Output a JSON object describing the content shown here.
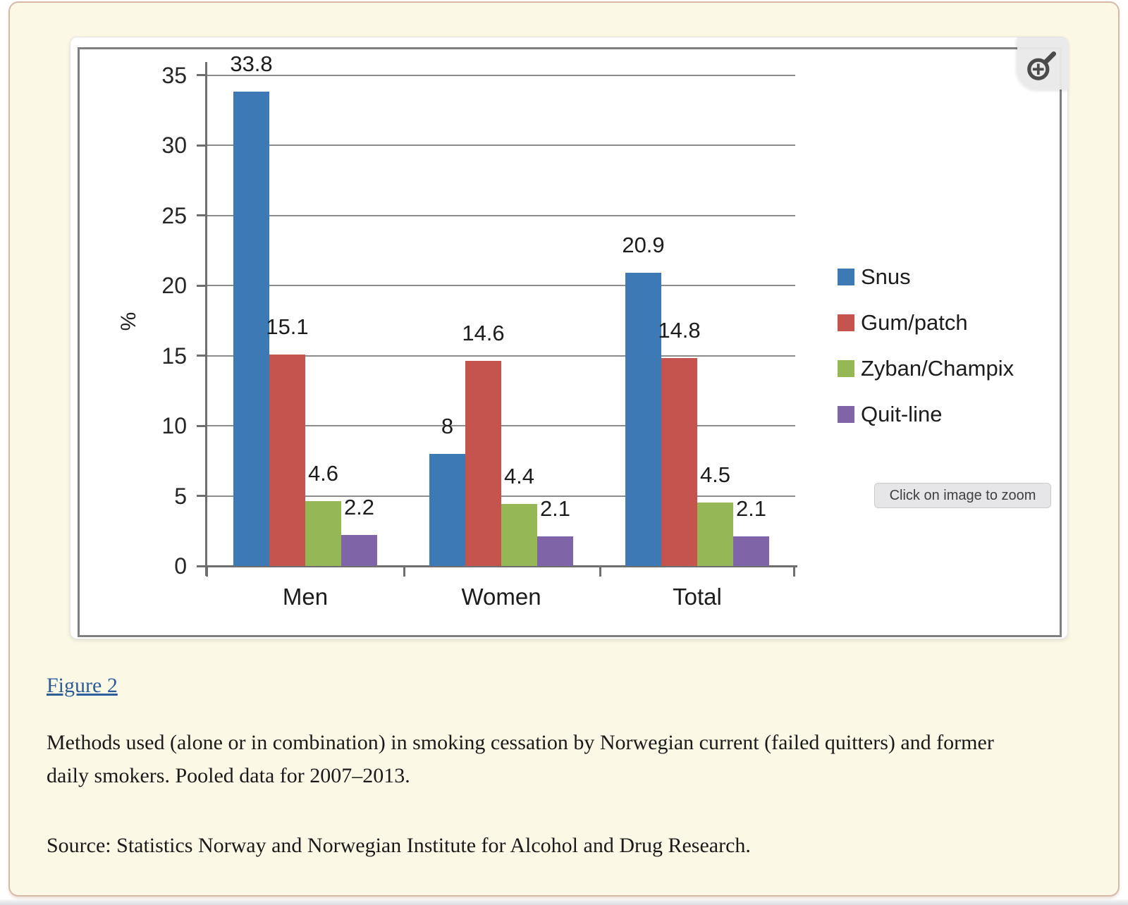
{
  "page": {
    "figure_link": "Figure 2",
    "caption": "Methods used (alone or in combination) in smoking cessation by Norwegian current (failed quitters) and former daily smokers. Pooled data for 2007–2013.",
    "source": "Source: Statistics Norway and Norwegian Institute for Alcohol and Drug Research.",
    "zoom_tooltip": "Click on image to zoom",
    "zoom_icon": "magnifier-plus-icon"
  },
  "colors": {
    "panel_background": "#fcf8e6",
    "panel_border": "#d8b9a6",
    "link_blue": "#2b5d9b",
    "gridline": "#8c8c8c",
    "axis": "#6e6e6e",
    "chart_border": "#7f7f7f"
  },
  "chart_data": {
    "type": "bar",
    "title": "",
    "categories": [
      "Men",
      "Women",
      "Total"
    ],
    "series": [
      {
        "name": "Snus",
        "color": "#3d79b5",
        "values": [
          33.8,
          8.0,
          20.9
        ]
      },
      {
        "name": "Gum/patch",
        "color": "#c5534e",
        "values": [
          15.1,
          14.6,
          14.8
        ]
      },
      {
        "name": "Zyban/Champix",
        "color": "#95b755",
        "values": [
          4.6,
          4.4,
          4.5
        ]
      },
      {
        "name": "Quit-line",
        "color": "#8064a8",
        "values": [
          2.2,
          2.1,
          2.1
        ]
      }
    ],
    "xlabel": "",
    "ylabel": "%",
    "ylim": [
      0,
      35
    ],
    "ytick_step": 5,
    "grid": true,
    "legend_position": "right",
    "data_labels": true
  }
}
